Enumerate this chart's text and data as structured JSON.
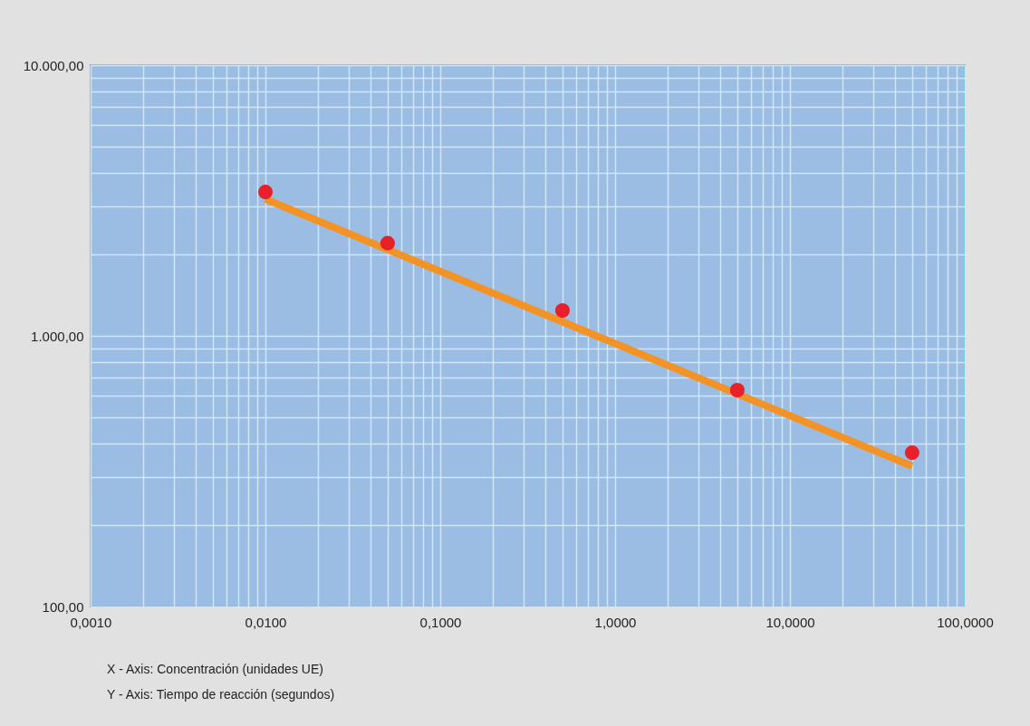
{
  "chart_data": {
    "type": "line",
    "log": "xy",
    "grid": true,
    "xlim": [
      0.001,
      100
    ],
    "ylim": [
      100,
      10000
    ],
    "xticks": [
      {
        "value": 0.001,
        "label": "0,0010"
      },
      {
        "value": 0.01,
        "label": "0,0100"
      },
      {
        "value": 0.1,
        "label": "0,1000"
      },
      {
        "value": 1,
        "label": "1,0000"
      },
      {
        "value": 10,
        "label": "10,0000"
      },
      {
        "value": 100,
        "label": "100,0000"
      }
    ],
    "yticks": [
      {
        "value": 100,
        "label": "100,00"
      },
      {
        "value": 1000,
        "label": "1.000,00"
      },
      {
        "value": 10000,
        "label": "10.000,00"
      }
    ],
    "series": [
      {
        "color": "#f39325",
        "x": [
          0.01,
          50
        ],
        "values": [
          3200,
          330
        ]
      },
      {
        "type": "scatter",
        "marker": "circle",
        "color": "#e8202a",
        "x": [
          0.01,
          0.05,
          0.5,
          5,
          50
        ],
        "values": [
          3400,
          2200,
          1240,
          630,
          370
        ]
      }
    ],
    "annotations": [
      "X - Axis: Concentración (unidades UE)",
      "Y - Axis: Tiempo de reacción (segundos)"
    ]
  }
}
